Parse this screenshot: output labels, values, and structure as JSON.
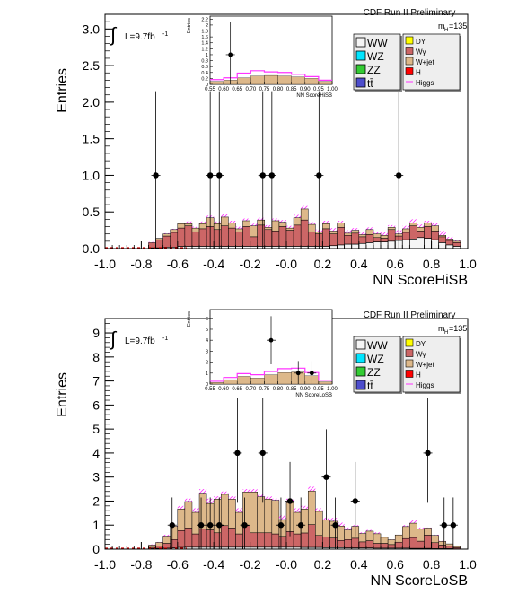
{
  "colors": {
    "WW": "#f5f5f5",
    "WZ": "#00e5ff",
    "ZZ": "#33cc33",
    "ttbar": "#4d4dcc",
    "DY": "#ffff00",
    "Wgamma": "#cc6666",
    "Wjet": "#ddb88a",
    "H": "#ff0000",
    "Higgs": "#ff33ff"
  },
  "chart_data": [
    {
      "type": "bar",
      "title": "CDF Run II Preliminary",
      "xlabel": "NN ScoreHiSB",
      "ylabel": "Entries",
      "annotations": {
        "lumi": "L=9.7fb",
        "lumi_sup": "-1",
        "mass_main": "m",
        "mass_sub": "H",
        "mass_val": "=135",
        "integral": "∫"
      },
      "xlim": [
        -1.0,
        1.0
      ],
      "ylim": [
        0,
        3.2
      ],
      "xticks": [
        "-1.0",
        "-0.8",
        "-0.6",
        "-0.4",
        "-0.2",
        "-0.0",
        "0.2",
        "0.4",
        "0.6",
        "0.8",
        "1.0"
      ],
      "yticks": [
        "0.0",
        "0.5",
        "1.0",
        "1.5",
        "2.0",
        "2.5",
        "3.0"
      ],
      "bin_width": 0.04,
      "bin_start": -0.84,
      "legend": {
        "placement": "top-right",
        "left": [
          {
            "key": "WW",
            "label": "WW"
          },
          {
            "key": "WZ",
            "label": "WZ"
          },
          {
            "key": "ZZ",
            "label": "ZZ"
          },
          {
            "key": "ttbar",
            "label": "tt̄"
          }
        ],
        "right": [
          {
            "key": "DY",
            "label": "DY"
          },
          {
            "key": "Wgamma",
            "label": "Wγ"
          },
          {
            "key": "Wjet",
            "label": "W+jet"
          },
          {
            "key": "H",
            "label": "H"
          },
          {
            "key": "Higgs",
            "label": "Higgs"
          }
        ]
      },
      "series": [
        {
          "name": "WW",
          "values": [
            0,
            0,
            0.01,
            0.01,
            0.02,
            0.02,
            0.03,
            0.03,
            0.03,
            0.03,
            0.03,
            0.03,
            0.03,
            0.03,
            0.03,
            0.03,
            0.03,
            0.03,
            0.03,
            0.03,
            0.03,
            0.03,
            0.03,
            0.03,
            0.03,
            0.03,
            0.03,
            0.04,
            0.05,
            0.06,
            0.06,
            0.07,
            0.08,
            0.09,
            0.09,
            0.1,
            0.11,
            0.12,
            0.13,
            0.15,
            0.14,
            0.12,
            0.08,
            0.05,
            0.03
          ]
        },
        {
          "name": "Wgamma",
          "values": [
            0,
            0,
            0.07,
            0.11,
            0.15,
            0.2,
            0.25,
            0.28,
            0.2,
            0.24,
            0.27,
            0.23,
            0.28,
            0.25,
            0.2,
            0.27,
            0.13,
            0.29,
            0.23,
            0.21,
            0.27,
            0.22,
            0.29,
            0.36,
            0.2,
            0.17,
            0.24,
            0.16,
            0.24,
            0.12,
            0.15,
            0.09,
            0.11,
            0.06,
            0.05,
            0.16,
            0.06,
            0.1,
            0.18,
            0.09,
            0.16,
            0.12,
            0.08,
            0.06,
            0.05
          ]
        },
        {
          "name": "W+jet",
          "values": [
            0,
            0,
            0,
            0.02,
            0.03,
            0.04,
            0.06,
            0.03,
            0.05,
            0.07,
            0.12,
            0.08,
            0.12,
            0.07,
            0.04,
            0.08,
            0.15,
            0.07,
            0.03,
            0.14,
            0.06,
            0.03,
            0.1,
            0.15,
            0.1,
            0.03,
            0.07,
            0.04,
            0.06,
            0.03,
            0.04,
            0.03,
            0.07,
            0.05,
            0.04,
            0.03,
            0.03,
            0.05,
            0.04,
            0.05,
            0.05,
            0.07,
            0.02,
            0.02,
            0.02
          ]
        },
        {
          "name": "Higgs",
          "values": [
            0,
            0,
            0.09,
            0.14,
            0.21,
            0.27,
            0.35,
            0.37,
            0.3,
            0.37,
            0.45,
            0.37,
            0.47,
            0.38,
            0.3,
            0.41,
            0.34,
            0.42,
            0.32,
            0.41,
            0.39,
            0.31,
            0.46,
            0.58,
            0.36,
            0.26,
            0.38,
            0.28,
            0.38,
            0.25,
            0.28,
            0.23,
            0.29,
            0.23,
            0.22,
            0.32,
            0.25,
            0.31,
            0.4,
            0.33,
            0.38,
            0.35,
            0.24,
            0.16,
            0.12
          ]
        }
      ],
      "data_points": [
        {
          "x": -0.72,
          "y": 1
        },
        {
          "x": -0.42,
          "y": 1
        },
        {
          "x": -0.37,
          "y": 1
        },
        {
          "x": -0.13,
          "y": 1
        },
        {
          "x": -0.08,
          "y": 1
        },
        {
          "x": 0.18,
          "y": 1
        },
        {
          "x": 0.62,
          "y": 1
        }
      ],
      "inset": {
        "xlabel": "NN ScoreHiSB",
        "ylabel": "Entries",
        "xlim": [
          0.55,
          1.0
        ],
        "ylim": [
          0,
          2.3
        ],
        "xticks": [
          "0.55",
          "0.60",
          "0.65",
          "0.70",
          "0.75",
          "0.80",
          "0.85",
          "0.90",
          "0.95",
          "1.00"
        ],
        "yticks": [
          "0",
          "0.2",
          "0.4",
          "0.6",
          "0.8",
          "1",
          "1.2",
          "1.4",
          "1.6",
          "1.8",
          "2",
          "2.2"
        ],
        "bin_width": 0.05,
        "bin_start": 0.55,
        "stack": [
          0.1,
          0.14,
          0.22,
          0.28,
          0.3,
          0.28,
          0.25,
          0.2,
          0.1
        ],
        "signal": [
          0.16,
          0.22,
          0.38,
          0.46,
          0.42,
          0.4,
          0.34,
          0.26,
          0.14
        ],
        "data_points": [
          {
            "x": 0.625,
            "y": 1
          }
        ]
      }
    },
    {
      "type": "bar",
      "title": "CDF Run II Preliminary",
      "xlabel": "NN ScoreLoSB",
      "ylabel": "Entries",
      "annotations": {
        "lumi": "L=9.7fb",
        "lumi_sup": "-1",
        "mass_main": "m",
        "mass_sub": "H",
        "mass_val": "=135",
        "integral": "∫"
      },
      "xlim": [
        -1.0,
        1.0
      ],
      "ylim": [
        0,
        9.6
      ],
      "xticks": [
        "-1.0",
        "-0.8",
        "-0.6",
        "-0.4",
        "-0.2",
        "-0.0",
        "0.2",
        "0.4",
        "0.6",
        "0.8",
        "1.0"
      ],
      "yticks": [
        "0",
        "1",
        "2",
        "3",
        "4",
        "5",
        "6",
        "7",
        "8",
        "9"
      ],
      "bin_width": 0.04,
      "bin_start": -0.84,
      "legend": {
        "placement": "top-right",
        "left": [
          {
            "key": "WW",
            "label": "WW"
          },
          {
            "key": "WZ",
            "label": "WZ"
          },
          {
            "key": "ZZ",
            "label": "ZZ"
          },
          {
            "key": "ttbar",
            "label": "tt̄"
          }
        ],
        "right": [
          {
            "key": "DY",
            "label": "DY"
          },
          {
            "key": "Wgamma",
            "label": "Wγ"
          },
          {
            "key": "Wjet",
            "label": "W+jet"
          },
          {
            "key": "H",
            "label": "H"
          },
          {
            "key": "Higgs",
            "label": "Higgs"
          }
        ]
      },
      "series": [
        {
          "name": "WW",
          "values": [
            0,
            0,
            0.02,
            0.03,
            0.04,
            0.05,
            0.07,
            0.08,
            0.08,
            0.08,
            0.08,
            0.08,
            0.08,
            0.08,
            0.08,
            0.08,
            0.08,
            0.08,
            0.08,
            0.08,
            0.08,
            0.08,
            0.08,
            0.07,
            0.07,
            0.07,
            0.06,
            0.06,
            0.06,
            0.05,
            0.05,
            0.05,
            0.05,
            0.04,
            0.04,
            0.04,
            0.04,
            0.04,
            0.03,
            0.03,
            0.03,
            0.02,
            0.02,
            0.02,
            0.01
          ]
        },
        {
          "name": "Wgamma",
          "values": [
            0,
            0,
            0.05,
            0.1,
            0.2,
            0.35,
            0.7,
            0.8,
            0.55,
            0.75,
            0.72,
            0.6,
            0.9,
            0.8,
            0.55,
            0.9,
            0.6,
            0.6,
            0.6,
            0.55,
            0.45,
            0.65,
            0.55,
            0.6,
            0.95,
            0.5,
            0.45,
            0.4,
            0.3,
            0.35,
            0.4,
            0.25,
            0.3,
            0.2,
            0.2,
            0.15,
            0.25,
            0.4,
            0.45,
            0.3,
            0.55,
            0.25,
            0.15,
            0.1,
            0.05
          ]
        },
        {
          "name": "W+jet",
          "values": [
            0,
            0,
            0.1,
            0.15,
            0.3,
            0.55,
            0.9,
            1.1,
            0.9,
            1.5,
            1.1,
            1.4,
            1.3,
            1.2,
            0.9,
            1.4,
            1.7,
            1.5,
            1.4,
            1.4,
            0.7,
            1.2,
            0.9,
            1.0,
            1.4,
            1.0,
            0.7,
            0.7,
            0.6,
            0.4,
            0.5,
            0.35,
            0.4,
            0.4,
            0.25,
            0.2,
            0.3,
            0.5,
            0.6,
            0.5,
            0.3,
            0.3,
            0.15,
            0.1,
            0.05
          ]
        },
        {
          "name": "Higgs",
          "values": [
            0,
            0,
            0.2,
            0.3,
            0.6,
            1.0,
            1.8,
            2.1,
            1.7,
            2.5,
            2.1,
            2.2,
            2.4,
            2.2,
            1.7,
            2.5,
            2.5,
            2.3,
            2.2,
            2.1,
            1.4,
            2.1,
            1.7,
            1.8,
            2.6,
            1.7,
            1.3,
            1.3,
            1.1,
            0.9,
            1.0,
            0.7,
            0.8,
            0.7,
            0.5,
            0.4,
            0.6,
            1.0,
            1.2,
            0.9,
            0.9,
            0.6,
            0.35,
            0.22,
            0.12
          ]
        }
      ],
      "data_points": [
        {
          "x": -0.63,
          "y": 1
        },
        {
          "x": -0.47,
          "y": 1
        },
        {
          "x": -0.42,
          "y": 1
        },
        {
          "x": -0.37,
          "y": 1
        },
        {
          "x": -0.27,
          "y": 4
        },
        {
          "x": -0.23,
          "y": 1
        },
        {
          "x": -0.13,
          "y": 4
        },
        {
          "x": -0.03,
          "y": 1
        },
        {
          "x": 0.02,
          "y": 2
        },
        {
          "x": 0.08,
          "y": 1
        },
        {
          "x": 0.22,
          "y": 3
        },
        {
          "x": 0.27,
          "y": 1
        },
        {
          "x": 0.38,
          "y": 2
        },
        {
          "x": 0.78,
          "y": 4
        },
        {
          "x": 0.87,
          "y": 1
        },
        {
          "x": 0.92,
          "y": 1
        }
      ],
      "inset": {
        "xlabel": "NN ScoreLoSB",
        "ylabel": "Entries",
        "xlim": [
          0.55,
          1.0
        ],
        "ylim": [
          0,
          6.8
        ],
        "xticks": [
          "0.55",
          "0.60",
          "0.65",
          "0.70",
          "0.75",
          "0.80",
          "0.85",
          "0.90",
          "0.95",
          "1.00"
        ],
        "yticks": [
          "0",
          "1",
          "2",
          "3",
          "4",
          "5",
          "6"
        ],
        "bin_width": 0.05,
        "bin_start": 0.55,
        "stack": [
          0.15,
          0.4,
          0.7,
          0.55,
          0.85,
          1.05,
          1.1,
          0.75,
          0.2
        ],
        "signal": [
          0.25,
          0.6,
          0.95,
          0.85,
          1.15,
          1.4,
          1.45,
          1.05,
          0.35
        ],
        "data_points": [
          {
            "x": 0.775,
            "y": 4
          },
          {
            "x": 0.875,
            "y": 1
          },
          {
            "x": 0.925,
            "y": 1
          }
        ]
      }
    }
  ]
}
